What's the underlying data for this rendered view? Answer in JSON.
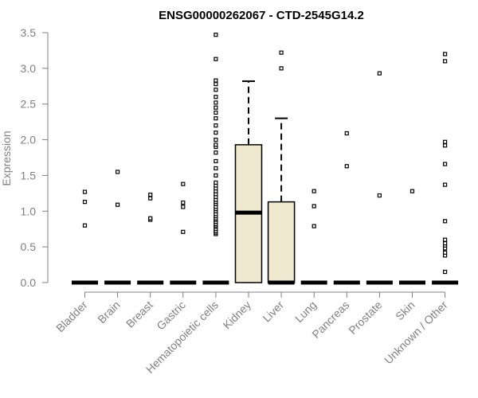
{
  "chart_data": {
    "type": "boxplot",
    "title": "ENSG00000262067 - CTD-2545G14.2",
    "ylabel": "Expression",
    "xlabel": "",
    "ylim": [
      0,
      3.5
    ],
    "yticks": [
      0.0,
      0.5,
      1.0,
      1.5,
      2.0,
      2.5,
      3.0,
      3.5
    ],
    "ytick_labels": [
      "0.0",
      "0.5",
      "1.0",
      "1.5",
      "2.0",
      "2.5",
      "3.0",
      "3.5"
    ],
    "box_fill": "#efe9d0",
    "categories": [
      "Bladder",
      "Brain",
      "Breast",
      "Gastric",
      "Hematopoietic cells",
      "Kidney",
      "Liver",
      "Lung",
      "Pancreas",
      "Prostate",
      "Skin",
      "Unknown / Other"
    ],
    "boxes": [
      {
        "category": "Bladder",
        "q1": 0,
        "median": 0,
        "q3": 0,
        "whisker_low": 0,
        "whisker_high": 0,
        "outliers": [
          0.8,
          1.13,
          1.27
        ]
      },
      {
        "category": "Brain",
        "q1": 0,
        "median": 0,
        "q3": 0,
        "whisker_low": 0,
        "whisker_high": 0,
        "outliers": [
          1.09,
          1.55
        ]
      },
      {
        "category": "Breast",
        "q1": 0,
        "median": 0,
        "q3": 0,
        "whisker_low": 0,
        "whisker_high": 0,
        "outliers": [
          0.88,
          0.9,
          1.18,
          1.23
        ]
      },
      {
        "category": "Gastric",
        "q1": 0,
        "median": 0,
        "q3": 0,
        "whisker_low": 0,
        "whisker_high": 0,
        "outliers": [
          0.71,
          1.06,
          1.12,
          1.38
        ]
      },
      {
        "category": "Hematopoietic cells",
        "q1": 0,
        "median": 0,
        "q3": 0,
        "whisker_low": 0,
        "whisker_high": 0,
        "outliers": [
          0.68,
          0.7,
          0.72,
          0.75,
          0.78,
          0.8,
          0.82,
          0.85,
          0.88,
          0.9,
          0.93,
          0.96,
          1.0,
          1.03,
          1.06,
          1.1,
          1.13,
          1.16,
          1.2,
          1.24,
          1.28,
          1.32,
          1.36,
          1.4,
          1.5,
          1.6,
          1.7,
          1.82,
          1.9,
          1.93,
          2.0,
          2.1,
          2.2,
          2.3,
          2.38,
          2.45,
          2.52,
          2.6,
          2.7,
          2.78,
          2.83,
          3.13,
          3.47
        ]
      },
      {
        "category": "Kidney",
        "q1": 0,
        "median": 0.98,
        "q3": 1.93,
        "whisker_low": 0,
        "whisker_high": 2.82,
        "outliers": []
      },
      {
        "category": "Liver",
        "q1": 0,
        "median": 0,
        "q3": 1.13,
        "whisker_low": 0,
        "whisker_high": 2.3,
        "outliers": [
          3.0,
          3.22
        ]
      },
      {
        "category": "Lung",
        "q1": 0,
        "median": 0,
        "q3": 0,
        "whisker_low": 0,
        "whisker_high": 0,
        "outliers": [
          0.79,
          1.07,
          1.28
        ]
      },
      {
        "category": "Pancreas",
        "q1": 0,
        "median": 0,
        "q3": 0,
        "whisker_low": 0,
        "whisker_high": 0,
        "outliers": [
          1.63,
          2.09
        ]
      },
      {
        "category": "Prostate",
        "q1": 0,
        "median": 0,
        "q3": 0,
        "whisker_low": 0,
        "whisker_high": 0,
        "outliers": [
          1.22,
          2.93
        ]
      },
      {
        "category": "Skin",
        "q1": 0,
        "median": 0,
        "q3": 0,
        "whisker_low": 0,
        "whisker_high": 0,
        "outliers": [
          1.28
        ]
      },
      {
        "category": "Unknown / Other",
        "q1": 0,
        "median": 0,
        "q3": 0,
        "whisker_low": 0,
        "whisker_high": 0,
        "outliers": [
          0.15,
          0.38,
          0.42,
          0.48,
          0.52,
          0.55,
          0.6,
          0.86,
          1.37,
          1.66,
          1.92,
          1.97,
          3.1,
          3.2
        ]
      }
    ]
  }
}
